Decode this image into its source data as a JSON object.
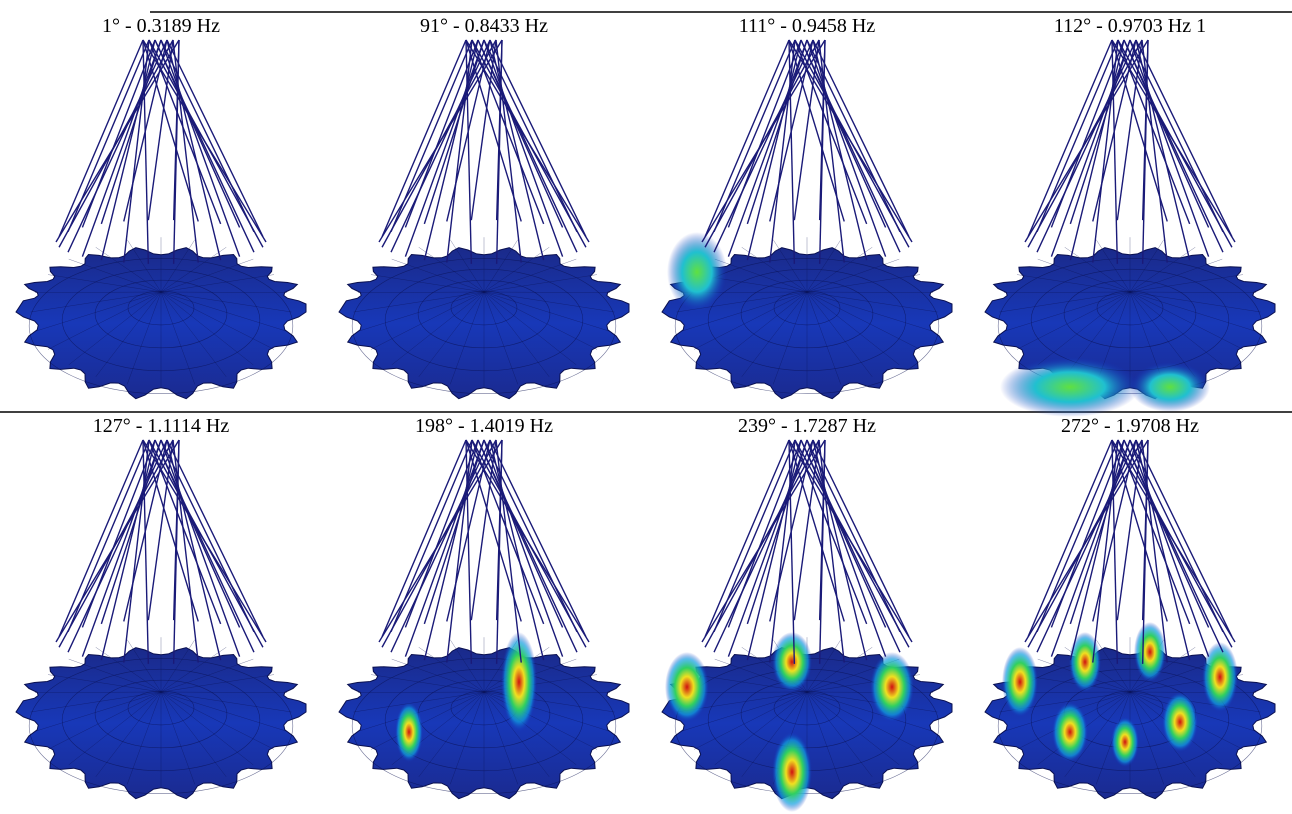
{
  "panels": [
    {
      "label": "1° - 0.3189 Hz"
    },
    {
      "label": "91° - 0.8433 Hz"
    },
    {
      "label": "111° - 0.9458 Hz"
    },
    {
      "label": "112° - 0.9703 Hz 1"
    },
    {
      "label": "127° - 1.1114 Hz"
    },
    {
      "label": "198° - 1.4019 Hz"
    },
    {
      "label": "239° - 1.7287 Hz"
    },
    {
      "label": "272° - 1.9708 Hz"
    }
  ]
}
